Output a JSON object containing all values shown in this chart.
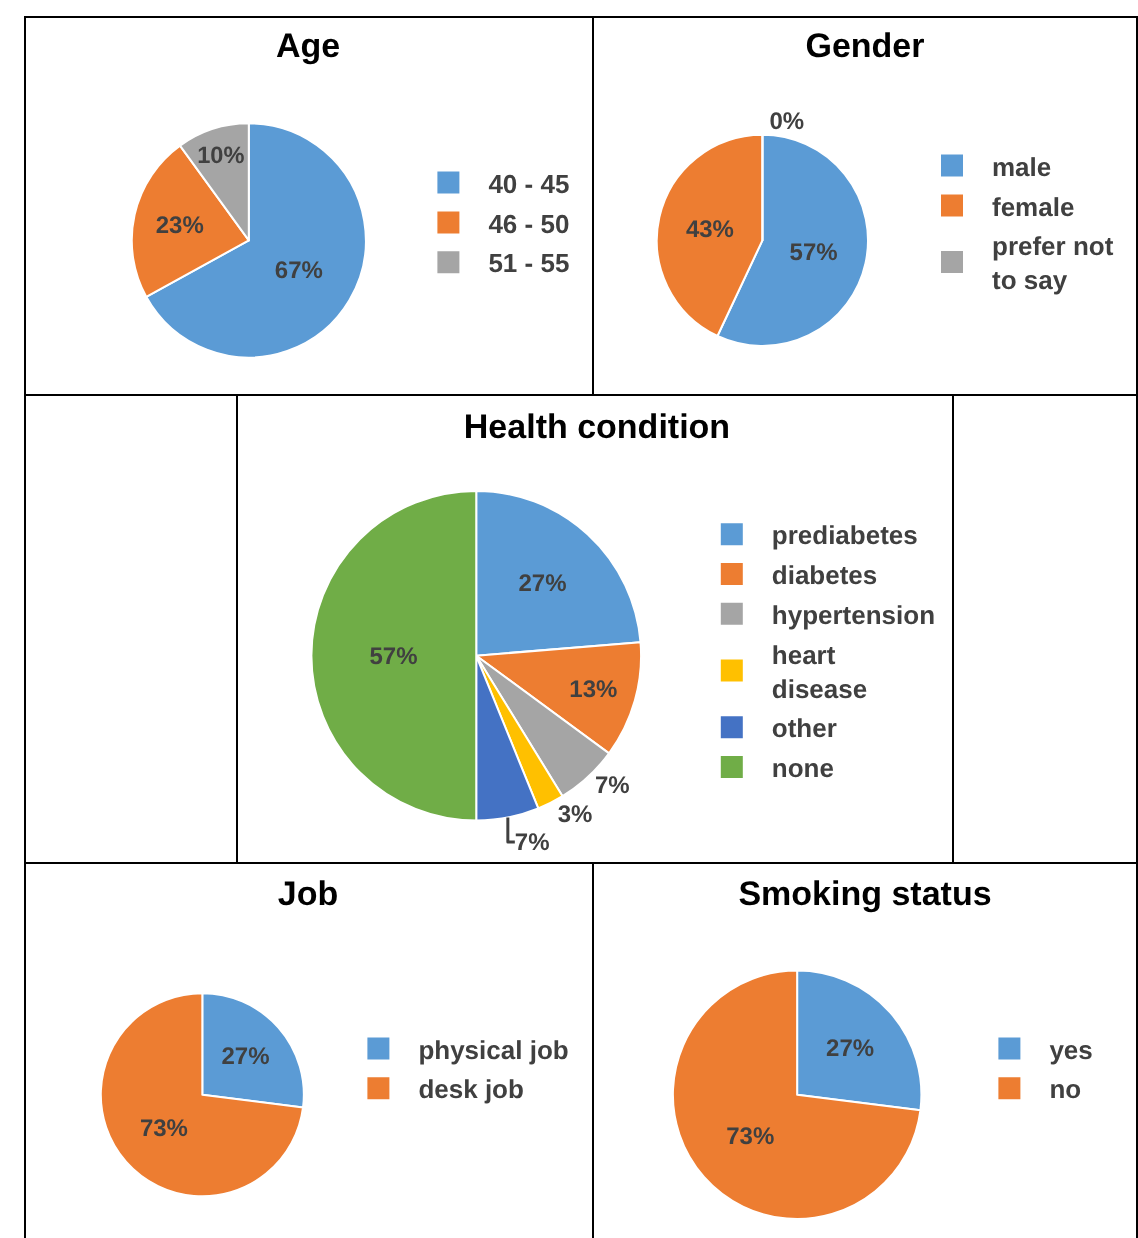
{
  "chart_data": [
    {
      "type": "pie",
      "title": "Age",
      "categories": [
        "40 - 45",
        "46 - 50",
        "51 - 55"
      ],
      "values": [
        67,
        23,
        10
      ],
      "colors": [
        "#5b9bd5",
        "#ed7d31",
        "#a5a5a5"
      ],
      "value_labels": [
        "67%",
        "23%",
        "10%"
      ],
      "legend": "right"
    },
    {
      "type": "pie",
      "title": "Gender",
      "categories": [
        "male",
        "female",
        "prefer not to say"
      ],
      "values": [
        57,
        43,
        0
      ],
      "colors": [
        "#5b9bd5",
        "#ed7d31",
        "#a5a5a5"
      ],
      "value_labels": [
        "57%",
        "43%",
        "0%"
      ],
      "legend": "right"
    },
    {
      "type": "pie",
      "title": "Health condition",
      "categories": [
        "prediabetes",
        "diabetes",
        "hypertension",
        "heart disease",
        "other",
        "none"
      ],
      "values": [
        27,
        13,
        7,
        3,
        7,
        57
      ],
      "colors": [
        "#5b9bd5",
        "#ed7d31",
        "#a5a5a5",
        "#ffc000",
        "#4472c4",
        "#70ad47"
      ],
      "value_labels": [
        "27%",
        "13%",
        "7%",
        "3%",
        "7%",
        "57%"
      ],
      "legend": "right"
    },
    {
      "type": "pie",
      "title": "Job",
      "categories": [
        "physical job",
        "desk job"
      ],
      "values": [
        27,
        73
      ],
      "colors": [
        "#5b9bd5",
        "#ed7d31"
      ],
      "value_labels": [
        "27%",
        "73%"
      ],
      "legend": "right"
    },
    {
      "type": "pie",
      "title": "Smoking status",
      "categories": [
        "yes",
        "no"
      ],
      "values": [
        27,
        73
      ],
      "colors": [
        "#5b9bd5",
        "#ed7d31"
      ],
      "value_labels": [
        "27%",
        "73%"
      ],
      "legend": "right"
    }
  ]
}
